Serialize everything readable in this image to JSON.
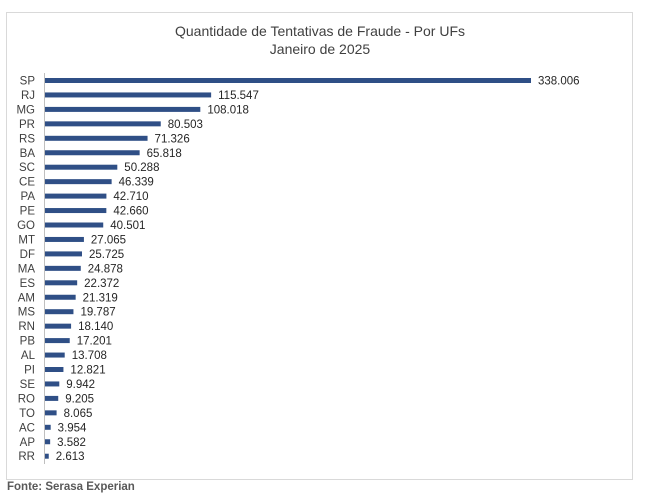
{
  "chart_data": {
    "type": "bar",
    "orientation": "horizontal",
    "title": "Quantidade de Tentativas de Fraude - Por UFs",
    "subtitle": "Janeiro de 2025",
    "categories": [
      "SP",
      "RJ",
      "MG",
      "PR",
      "RS",
      "BA",
      "SC",
      "CE",
      "PA",
      "PE",
      "GO",
      "MT",
      "DF",
      "MA",
      "ES",
      "AM",
      "MS",
      "RN",
      "PB",
      "AL",
      "PI",
      "SE",
      "RO",
      "TO",
      "AC",
      "AP",
      "RR"
    ],
    "values": [
      338006,
      115547,
      108018,
      80503,
      71326,
      65818,
      50288,
      46339,
      42710,
      42660,
      40501,
      27065,
      25725,
      24878,
      22372,
      21319,
      19787,
      18140,
      17201,
      13708,
      12821,
      9942,
      9205,
      8065,
      3954,
      3582,
      2613
    ],
    "value_labels": [
      "338.006",
      "115.547",
      "108.018",
      "80.503",
      "71.326",
      "65.818",
      "50.288",
      "46.339",
      "42.710",
      "42.660",
      "40.501",
      "27.065",
      "25.725",
      "24.878",
      "22.372",
      "21.319",
      "19.787",
      "18.140",
      "17.201",
      "13.708",
      "12.821",
      "9.942",
      "9.205",
      "8.065",
      "3.954",
      "3.582",
      "2.613"
    ],
    "bar_color": "#2f4f86",
    "grid": false,
    "legend": "none",
    "xlim": [
      0,
      338006
    ]
  },
  "footer": {
    "source": "Fonte: Serasa Experian"
  }
}
